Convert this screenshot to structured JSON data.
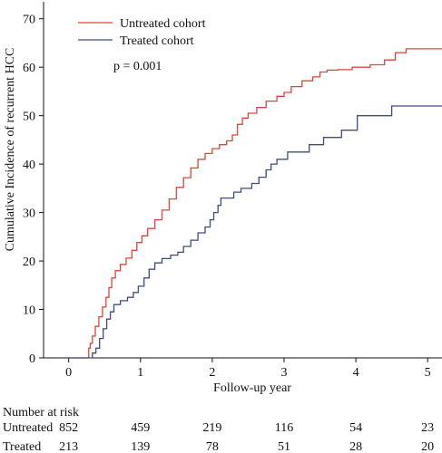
{
  "chart_data": {
    "type": "line",
    "step": true,
    "xlabel": "Follow-up year",
    "ylabel": "Cumulative Incidence of recurrent HCC",
    "xlim": [
      -0.35,
      5.2
    ],
    "ylim": [
      0,
      73.5
    ],
    "x_ticks": [
      0,
      1,
      2,
      3,
      4,
      5
    ],
    "y_ticks": [
      0,
      10,
      20,
      30,
      40,
      50,
      60,
      70
    ],
    "grid": false,
    "legend_position": "top-left",
    "annotation": "p = 0.001",
    "series": [
      {
        "name": "Untreated cohort",
        "color": "#e0443a",
        "points": [
          [
            0,
            0
          ],
          [
            0.25,
            0
          ],
          [
            0.28,
            2
          ],
          [
            0.3,
            3
          ],
          [
            0.33,
            4.5
          ],
          [
            0.37,
            6.5
          ],
          [
            0.42,
            8.5
          ],
          [
            0.47,
            10.5
          ],
          [
            0.52,
            12.5
          ],
          [
            0.56,
            14.5
          ],
          [
            0.6,
            16.5
          ],
          [
            0.65,
            18
          ],
          [
            0.72,
            19.3
          ],
          [
            0.8,
            20.6
          ],
          [
            0.88,
            22.2
          ],
          [
            0.95,
            23.8
          ],
          [
            1.02,
            25.2
          ],
          [
            1.1,
            26.7
          ],
          [
            1.2,
            28.5
          ],
          [
            1.3,
            30.5
          ],
          [
            1.4,
            32.8
          ],
          [
            1.5,
            35.2
          ],
          [
            1.6,
            37.2
          ],
          [
            1.7,
            39.2
          ],
          [
            1.8,
            41
          ],
          [
            1.9,
            42.2
          ],
          [
            2.0,
            43.2
          ],
          [
            2.1,
            44
          ],
          [
            2.2,
            44.8
          ],
          [
            2.28,
            46
          ],
          [
            2.35,
            48.2
          ],
          [
            2.42,
            49.5
          ],
          [
            2.5,
            50.5
          ],
          [
            2.62,
            51.7
          ],
          [
            2.75,
            53
          ],
          [
            2.9,
            54
          ],
          [
            3.0,
            54.8
          ],
          [
            3.1,
            56
          ],
          [
            3.25,
            57.2
          ],
          [
            3.4,
            58
          ],
          [
            3.5,
            59
          ],
          [
            3.6,
            59.4
          ],
          [
            3.75,
            59.5
          ],
          [
            3.95,
            60
          ],
          [
            4.2,
            60.5
          ],
          [
            4.4,
            61.5
          ],
          [
            4.55,
            63
          ],
          [
            4.7,
            63.8
          ],
          [
            5.2,
            63.8
          ]
        ]
      },
      {
        "name": "Treated cohort",
        "color": "#3c4e7c",
        "points": [
          [
            0,
            0
          ],
          [
            0.3,
            0
          ],
          [
            0.33,
            1
          ],
          [
            0.38,
            2
          ],
          [
            0.43,
            4
          ],
          [
            0.48,
            6
          ],
          [
            0.53,
            8
          ],
          [
            0.58,
            9.5
          ],
          [
            0.63,
            11
          ],
          [
            0.72,
            11.8
          ],
          [
            0.82,
            12.5
          ],
          [
            0.9,
            13.5
          ],
          [
            0.97,
            14.8
          ],
          [
            1.05,
            16.5
          ],
          [
            1.12,
            18.3
          ],
          [
            1.2,
            19.6
          ],
          [
            1.3,
            20.5
          ],
          [
            1.42,
            21.2
          ],
          [
            1.52,
            21.8
          ],
          [
            1.6,
            23
          ],
          [
            1.7,
            24.3
          ],
          [
            1.8,
            25.8
          ],
          [
            1.9,
            27
          ],
          [
            1.97,
            28.5
          ],
          [
            2.02,
            30
          ],
          [
            2.08,
            31.5
          ],
          [
            2.12,
            33
          ],
          [
            2.25,
            33
          ],
          [
            2.3,
            34.2
          ],
          [
            2.4,
            35
          ],
          [
            2.55,
            36
          ],
          [
            2.65,
            37.3
          ],
          [
            2.75,
            38.8
          ],
          [
            2.82,
            40
          ],
          [
            2.9,
            41
          ],
          [
            3.0,
            41
          ],
          [
            3.05,
            42.5
          ],
          [
            3.15,
            42.5
          ],
          [
            3.25,
            42.5
          ],
          [
            3.35,
            44
          ],
          [
            3.45,
            44
          ],
          [
            3.55,
            45.5
          ],
          [
            3.75,
            45.5
          ],
          [
            3.8,
            47
          ],
          [
            4.0,
            47
          ],
          [
            4.02,
            50
          ],
          [
            4.25,
            50
          ],
          [
            4.45,
            50
          ],
          [
            4.5,
            52
          ],
          [
            5.2,
            52
          ]
        ]
      }
    ],
    "risk_table": {
      "title": "Number at risk",
      "time_points": [
        0,
        1,
        2,
        3,
        4,
        5
      ],
      "rows": [
        {
          "label": "Untreated",
          "values": [
            "852",
            "459",
            "219",
            "116",
            "54",
            "23"
          ]
        },
        {
          "label": "Treated",
          "values": [
            "213",
            "139",
            "78",
            "51",
            "28",
            "20"
          ]
        }
      ]
    }
  }
}
